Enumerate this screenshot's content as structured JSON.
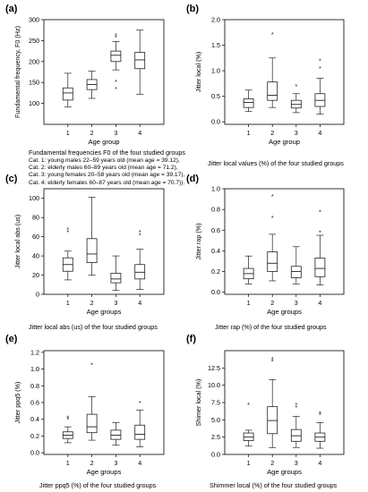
{
  "chart_data": [
    {
      "panel": "(a)",
      "type": "box",
      "categories": [
        "1",
        "2",
        "3",
        "4"
      ],
      "xlabel": "Age group",
      "ylabel": "Fundamental frequency, F0 (Hz)",
      "ylim": [
        50,
        300
      ],
      "yticks": [
        100,
        150,
        200,
        250,
        300
      ],
      "ytick_labels": [
        "100",
        "150",
        "200",
        "250",
        "300"
      ],
      "caption": "Fundamental frequencies F0 of the four studied groups",
      "legend": [
        "Cat. 1: young males 22–59 years old (mean age = 39.12),",
        "Cat. 2: elderly males 60–89 years old (mean age = 71.2),",
        "Cat. 3: young females 20–58 years old (mean age = 39.17),",
        "Cat. 4: elderly females 60–87 years old (mean age = 70.7))."
      ],
      "boxes": [
        {
          "whisker_low": 92,
          "q1": 108,
          "median": 125,
          "q3": 137,
          "whisker_high": 172,
          "outliers": []
        },
        {
          "whisker_low": 112,
          "q1": 133,
          "median": 145,
          "q3": 157,
          "whisker_high": 177,
          "outliers": []
        },
        {
          "whisker_low": 180,
          "q1": 200,
          "median": 215,
          "q3": 225,
          "whisker_high": 248,
          "outliers": [
            135,
            152,
            258,
            263
          ]
        },
        {
          "whisker_low": 122,
          "q1": 183,
          "median": 204,
          "q3": 222,
          "whisker_high": 275,
          "outliers": []
        }
      ]
    },
    {
      "panel": "(b)",
      "type": "box",
      "categories": [
        "1",
        "2",
        "3",
        "4"
      ],
      "xlabel": "Age group",
      "ylabel": "Jitter local (%)",
      "ylim": [
        -0.05,
        2.0
      ],
      "yticks": [
        0.0,
        0.5,
        1.0,
        1.5,
        2.0
      ],
      "ytick_labels": [
        "0.0",
        "0.5",
        "1.0",
        "1.5",
        "2.0"
      ],
      "caption": "Jitter local values (%) of the four studied groups",
      "boxes": [
        {
          "whisker_low": 0.2,
          "q1": 0.28,
          "median": 0.38,
          "q3": 0.45,
          "whisker_high": 0.62,
          "outliers": []
        },
        {
          "whisker_low": 0.28,
          "q1": 0.42,
          "median": 0.52,
          "q3": 0.78,
          "whisker_high": 1.25,
          "outliers": [
            1.72
          ]
        },
        {
          "whisker_low": 0.18,
          "q1": 0.27,
          "median": 0.34,
          "q3": 0.42,
          "whisker_high": 0.55,
          "outliers": [
            0.7
          ]
        },
        {
          "whisker_low": 0.15,
          "q1": 0.3,
          "median": 0.42,
          "q3": 0.55,
          "whisker_high": 0.85,
          "outliers": [
            1.05,
            1.2
          ]
        }
      ]
    },
    {
      "panel": "(c)",
      "type": "box",
      "categories": [
        "1",
        "2",
        "3",
        "4"
      ],
      "xlabel": "Age groups",
      "ylabel": "Jitter local abs (us)",
      "ylim": [
        0,
        110
      ],
      "yticks": [
        0,
        20,
        40,
        60,
        80,
        100
      ],
      "ytick_labels": [
        "0",
        "20",
        "40",
        "60",
        "80",
        "100"
      ],
      "caption": "Jitter local abs (us) of the four studied groups",
      "boxes": [
        {
          "whisker_low": 15,
          "q1": 24,
          "median": 31,
          "q3": 38,
          "whisker_high": 45,
          "outliers": [
            65,
            68
          ]
        },
        {
          "whisker_low": 20,
          "q1": 33,
          "median": 42,
          "q3": 58,
          "whisker_high": 101,
          "outliers": []
        },
        {
          "whisker_low": 4,
          "q1": 12,
          "median": 16,
          "q3": 22,
          "whisker_high": 40,
          "outliers": []
        },
        {
          "whisker_low": 5,
          "q1": 16,
          "median": 23,
          "q3": 31,
          "whisker_high": 47,
          "outliers": [
            62,
            65
          ]
        }
      ]
    },
    {
      "panel": "(d)",
      "type": "box",
      "categories": [
        "1",
        "2",
        "3",
        "4"
      ],
      "xlabel": "Age groups",
      "ylabel": "Jitter rap (%)",
      "ylim": [
        -0.02,
        1.0
      ],
      "yticks": [
        0.0,
        0.2,
        0.4,
        0.6,
        0.8,
        1.0
      ],
      "ytick_labels": [
        "0.0",
        "0.2",
        "0.4",
        "0.6",
        "0.8",
        "1.0"
      ],
      "caption": "Jitter rap (%) of the four studied groups",
      "boxes": [
        {
          "whisker_low": 0.08,
          "q1": 0.13,
          "median": 0.18,
          "q3": 0.23,
          "whisker_high": 0.35,
          "outliers": []
        },
        {
          "whisker_low": 0.11,
          "q1": 0.2,
          "median": 0.28,
          "q3": 0.39,
          "whisker_high": 0.56,
          "outliers": [
            0.72,
            0.93
          ]
        },
        {
          "whisker_low": 0.08,
          "q1": 0.14,
          "median": 0.2,
          "q3": 0.25,
          "whisker_high": 0.44,
          "outliers": []
        },
        {
          "whisker_low": 0.07,
          "q1": 0.15,
          "median": 0.23,
          "q3": 0.33,
          "whisker_high": 0.55,
          "outliers": [
            0.58,
            0.78
          ]
        }
      ]
    },
    {
      "panel": "(e)",
      "type": "box",
      "categories": [
        "1",
        "2",
        "3",
        "4"
      ],
      "xlabel": "Age groups",
      "ylabel": "Jitter ppq5 (%)",
      "ylim": [
        -0.02,
        1.22
      ],
      "yticks": [
        0.0,
        0.2,
        0.4,
        0.6,
        0.8,
        1.0,
        1.2
      ],
      "ytick_labels": [
        "0.0",
        "0.2",
        "0.4",
        "0.6",
        "0.8",
        "1.0",
        "1.2"
      ],
      "caption": "Jitter ppq5 (%) of the four studied groups",
      "boxes": [
        {
          "whisker_low": 0.12,
          "q1": 0.17,
          "median": 0.21,
          "q3": 0.25,
          "whisker_high": 0.31,
          "outliers": [
            0.4,
            0.42
          ]
        },
        {
          "whisker_low": 0.15,
          "q1": 0.24,
          "median": 0.31,
          "q3": 0.46,
          "whisker_high": 0.67,
          "outliers": [
            1.05
          ]
        },
        {
          "whisker_low": 0.09,
          "q1": 0.16,
          "median": 0.21,
          "q3": 0.27,
          "whisker_high": 0.36,
          "outliers": []
        },
        {
          "whisker_low": 0.07,
          "q1": 0.16,
          "median": 0.22,
          "q3": 0.33,
          "whisker_high": 0.51,
          "outliers": [
            0.6
          ]
        }
      ]
    },
    {
      "panel": "(f)",
      "type": "box",
      "categories": [
        "1",
        "2",
        "3",
        "4"
      ],
      "xlabel": "Age groups",
      "ylabel": "Shimer local (%)",
      "ylim": [
        0,
        15
      ],
      "yticks": [
        0.0,
        2.5,
        5.0,
        7.5,
        10.0,
        12.5
      ],
      "ytick_labels": [
        "0.0",
        "2.5",
        "5.0",
        "7.5",
        "10.0",
        "12.5"
      ],
      "caption": "Shimmer local (%) of the four studied groups",
      "boxes": [
        {
          "whisker_low": 1.2,
          "q1": 2.0,
          "median": 2.5,
          "q3": 3.1,
          "whisker_high": 3.5,
          "outliers": [
            7.2
          ]
        },
        {
          "whisker_low": 1.0,
          "q1": 3.0,
          "median": 4.9,
          "q3": 6.9,
          "whisker_high": 10.8,
          "outliers": [
            13.5,
            13.8
          ]
        },
        {
          "whisker_low": 1.0,
          "q1": 1.9,
          "median": 2.7,
          "q3": 3.6,
          "whisker_high": 5.5,
          "outliers": [
            6.8,
            7.2
          ]
        },
        {
          "whisker_low": 0.9,
          "q1": 1.9,
          "median": 2.5,
          "q3": 3.1,
          "whisker_high": 4.6,
          "outliers": [
            5.7,
            6.0
          ]
        }
      ]
    }
  ]
}
